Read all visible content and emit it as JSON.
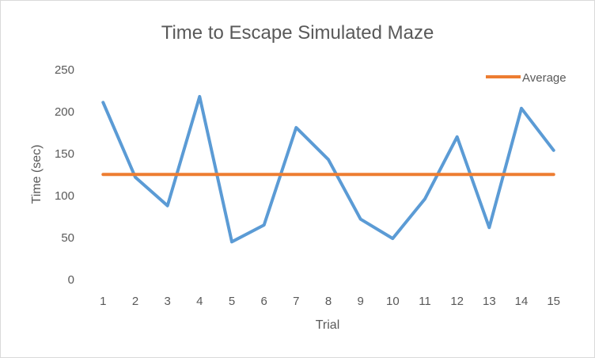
{
  "chart_data": {
    "type": "line",
    "title": "Time to Escape Simulated Maze",
    "xlabel": "Trial",
    "ylabel": "Time (sec)",
    "categories": [
      "1",
      "2",
      "3",
      "4",
      "5",
      "6",
      "7",
      "8",
      "9",
      "10",
      "11",
      "12",
      "13",
      "14",
      "15"
    ],
    "ylim": [
      0,
      250
    ],
    "yticks": [
      "0",
      "50",
      "100",
      "150",
      "200",
      "250"
    ],
    "grid": false,
    "legend_position": "top-right",
    "series": [
      {
        "name": "Time",
        "color": "#5b9bd5",
        "values": [
          211,
          122,
          88,
          218,
          45,
          65,
          181,
          143,
          72,
          49,
          96,
          170,
          62,
          204,
          154
        ],
        "show_in_legend": false
      },
      {
        "name": "Average",
        "color": "#ed7d31",
        "values": [
          125.3,
          125.3,
          125.3,
          125.3,
          125.3,
          125.3,
          125.3,
          125.3,
          125.3,
          125.3,
          125.3,
          125.3,
          125.3,
          125.3,
          125.3
        ],
        "show_in_legend": true
      }
    ]
  }
}
